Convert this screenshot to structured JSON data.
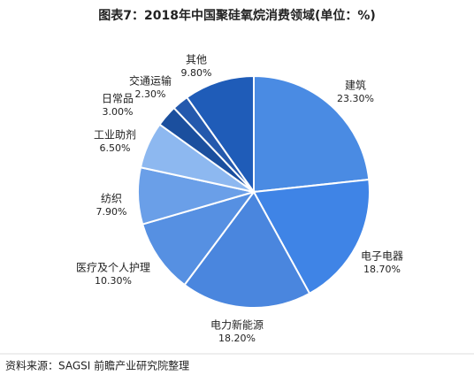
{
  "chart_data": {
    "type": "pie",
    "title": "图表7：2018年中国聚硅氧烷消费领域(单位：%)",
    "categories": [
      "建筑",
      "电子电器",
      "电力新能源",
      "医疗及个人护理",
      "纺织",
      "工业助剂",
      "日常品",
      "交通运输",
      "其他"
    ],
    "values": [
      23.3,
      18.7,
      18.2,
      10.3,
      7.9,
      6.5,
      3.0,
      2.3,
      9.8
    ],
    "value_labels": [
      "23.30%",
      "18.70%",
      "18.20%",
      "10.30%",
      "7.90%",
      "6.50%",
      "3.00%",
      "2.30%",
      "9.80%"
    ],
    "colors": [
      "#4a8be3",
      "#3f84e6",
      "#4a86de",
      "#5690e2",
      "#6a9fe8",
      "#8db8f0",
      "#1b4f9e",
      "#2459ad",
      "#1f5cb8"
    ],
    "source": "资料来源：SAGSI 前瞻产业研究院整理"
  }
}
